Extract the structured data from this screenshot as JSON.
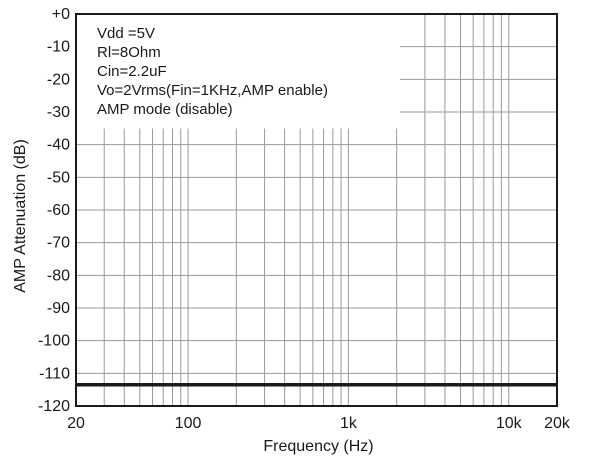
{
  "chart_data": {
    "type": "line",
    "title": "",
    "xlabel": "Frequency (Hz)",
    "ylabel": "AMP Attenuation (dB)",
    "xscale": "log",
    "xlim": [
      20,
      20000
    ],
    "ylim": [
      -120,
      0
    ],
    "grid": true,
    "x_tick_labels": [
      {
        "value": 20,
        "label": "20"
      },
      {
        "value": 100,
        "label": "100"
      },
      {
        "value": 1000,
        "label": "1k"
      },
      {
        "value": 10000,
        "label": "10k"
      },
      {
        "value": 20000,
        "label": "20k"
      }
    ],
    "y_tick_labels": [
      {
        "value": 0,
        "label": "+0"
      },
      {
        "value": -10,
        "label": "-10"
      },
      {
        "value": -20,
        "label": "-20"
      },
      {
        "value": -30,
        "label": "-30"
      },
      {
        "value": -40,
        "label": "-40"
      },
      {
        "value": -50,
        "label": "-50"
      },
      {
        "value": -60,
        "label": "-60"
      },
      {
        "value": -70,
        "label": "-70"
      },
      {
        "value": -80,
        "label": "-80"
      },
      {
        "value": -90,
        "label": "-90"
      },
      {
        "value": -100,
        "label": "-100"
      },
      {
        "value": -110,
        "label": "-110"
      },
      {
        "value": -120,
        "label": "-120"
      }
    ],
    "series": [
      {
        "x": [
          20,
          20000
        ],
        "y": [
          -113.5,
          -113.5
        ]
      }
    ],
    "annotations": [
      "Vdd =5V",
      "Rl=8Ohm",
      "Cin=2.2uF",
      "Vo=2Vrms(Fin=1KHz,AMP enable)",
      "AMP mode (disable)"
    ]
  },
  "colors": {
    "line": "#1a1a1a",
    "grid": "#9a9a9a",
    "frame": "#1a1a1a"
  }
}
